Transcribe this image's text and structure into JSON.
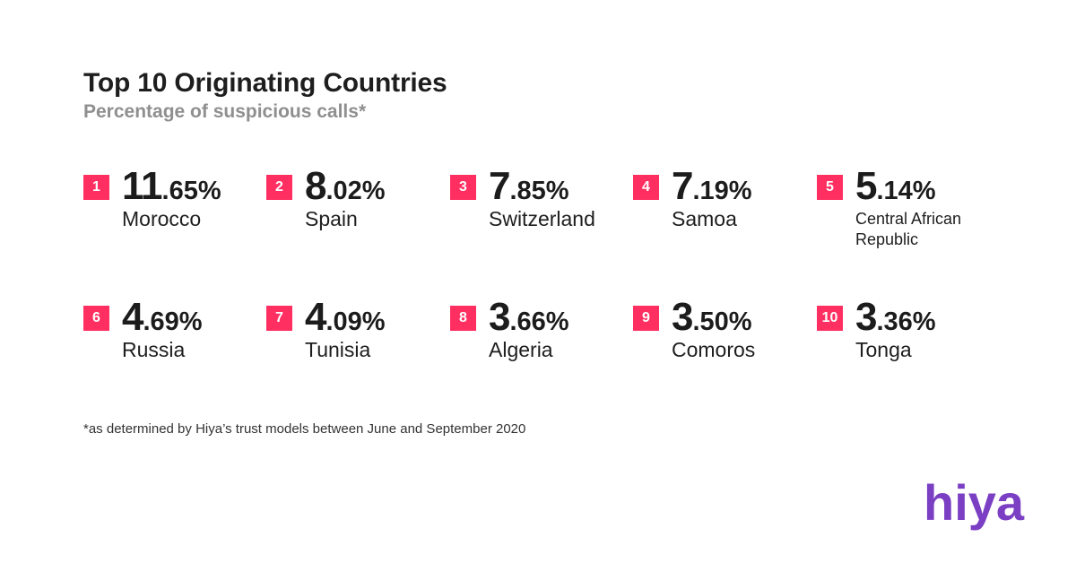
{
  "chart_data": {
    "type": "table",
    "title": "Top 10 Originating Countries",
    "subtitle": "Percentage of suspicious calls*",
    "items": [
      {
        "rank": "1",
        "int": "11",
        "dec": ".65%",
        "country": "Morocco"
      },
      {
        "rank": "2",
        "int": "8",
        "dec": ".02%",
        "country": "Spain"
      },
      {
        "rank": "3",
        "int": "7",
        "dec": ".85%",
        "country": "Switzerland"
      },
      {
        "rank": "4",
        "int": "7",
        "dec": ".19%",
        "country": "Samoa"
      },
      {
        "rank": "5",
        "int": "5",
        "dec": ".14%",
        "country": "Central African Republic"
      },
      {
        "rank": "6",
        "int": "4",
        "dec": ".69%",
        "country": "Russia"
      },
      {
        "rank": "7",
        "int": "4",
        "dec": ".09%",
        "country": "Tunisia"
      },
      {
        "rank": "8",
        "int": "3",
        "dec": ".66%",
        "country": "Algeria"
      },
      {
        "rank": "9",
        "int": "3",
        "dec": ".50%",
        "country": "Comoros"
      },
      {
        "rank": "10",
        "int": "3",
        "dec": ".36%",
        "country": "Tonga"
      }
    ],
    "footnote": "*as determined by Hiya’s trust models between June and September 2020"
  },
  "brand": {
    "logo_text": "hiya",
    "accent": "#ff2f62",
    "logo_color": "#7b3fc4"
  }
}
